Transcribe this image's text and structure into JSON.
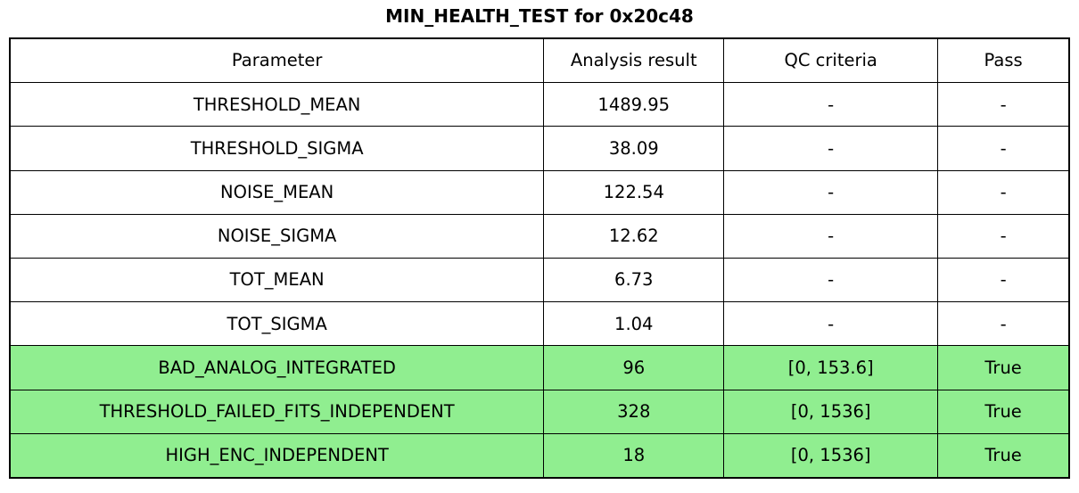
{
  "chart_data": {
    "type": "table",
    "title": "MIN_HEALTH_TEST for 0x20c48",
    "columns": [
      "Parameter",
      "Analysis result",
      "QC criteria",
      "Pass"
    ],
    "rows": [
      [
        "THRESHOLD_MEAN",
        "1489.95",
        "-",
        "-"
      ],
      [
        "THRESHOLD_SIGMA",
        "38.09",
        "-",
        "-"
      ],
      [
        "NOISE_MEAN",
        "122.54",
        "-",
        "-"
      ],
      [
        "NOISE_SIGMA",
        "12.62",
        "-",
        "-"
      ],
      [
        "TOT_MEAN",
        "6.73",
        "-",
        "-"
      ],
      [
        "TOT_SIGMA",
        "1.04",
        "-",
        "-"
      ],
      [
        "BAD_ANALOG_INTEGRATED",
        "96",
        "[0, 153.6]",
        "True"
      ],
      [
        "THRESHOLD_FAILED_FITS_INDEPENDENT",
        "328",
        "[0, 1536]",
        "True"
      ],
      [
        "HIGH_ENC_INDEPENDENT",
        "18",
        "[0, 1536]",
        "True"
      ]
    ],
    "highlight_rows": [
      6,
      7,
      8
    ],
    "legend_position": "none",
    "grid": "full-borders"
  },
  "colors": {
    "highlight_green": "#90ee90",
    "border": "#000000",
    "text": "#000000",
    "background": "#ffffff"
  }
}
